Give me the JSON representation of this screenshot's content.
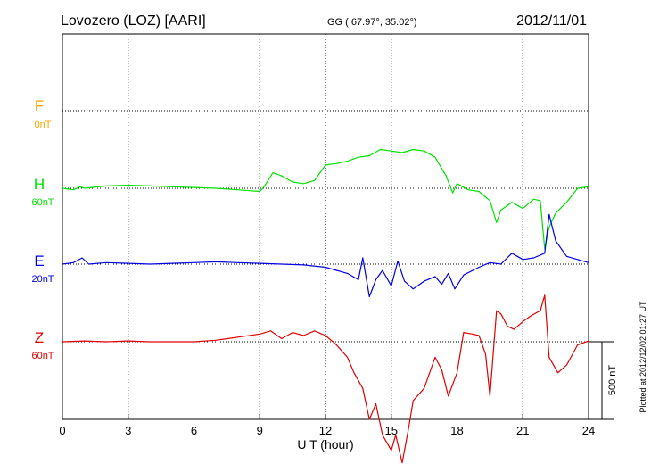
{
  "header": {
    "station": "Lovozero (LOZ)  [AARI]",
    "coords": "GG ( 67.97°,  35.02°)",
    "date": "2012/11/01"
  },
  "plotted_note": "Plotted at 2012/12/02 01:27 UT",
  "chart_data": {
    "type": "line",
    "xlabel": "U T (hour)",
    "xlim": [
      0,
      24
    ],
    "xticks": [
      "0",
      "3",
      "6",
      "9",
      "12",
      "15",
      "18",
      "21",
      "24"
    ],
    "scale_bar_label": "500 nT",
    "scale_bar_nT": 500,
    "grid": true,
    "series": [
      {
        "name": "F",
        "baseline_label": "0nT",
        "color": "#ffa500",
        "x": [],
        "values": []
      },
      {
        "name": "H",
        "baseline_label": "60nT",
        "color": "#00e000",
        "x": [
          0,
          0.5,
          0.8,
          1,
          2,
          3,
          4,
          5,
          6,
          7,
          8,
          9,
          9.2,
          9.6,
          10,
          10.5,
          11,
          11.5,
          12,
          12.5,
          13,
          13.5,
          14,
          14.5,
          15,
          15.5,
          16,
          16.5,
          17,
          17.5,
          17.8,
          18,
          18.5,
          19,
          19.5,
          19.8,
          20,
          20.5,
          21,
          21.5,
          21.8,
          22,
          22.2,
          22.5,
          23,
          23.5,
          24
        ],
        "values": [
          0,
          -10,
          10,
          0,
          15,
          20,
          15,
          10,
          5,
          0,
          -10,
          -20,
          10,
          100,
          80,
          40,
          30,
          50,
          150,
          160,
          175,
          200,
          210,
          250,
          240,
          230,
          250,
          240,
          200,
          80,
          -30,
          30,
          -10,
          -20,
          -80,
          -220,
          -140,
          -90,
          -130,
          -70,
          -80,
          -390,
          -250,
          -160,
          -90,
          0,
          10
        ]
      },
      {
        "name": "E",
        "baseline_label": "20nT",
        "color": "#0000e0",
        "x": [
          0,
          0.5,
          0.9,
          1.2,
          2,
          3,
          4,
          5,
          6,
          7,
          8,
          9,
          10,
          11,
          12,
          12.5,
          13,
          13.5,
          13.7,
          14,
          14.3,
          14.6,
          15,
          15.3,
          15.6,
          16,
          16.5,
          17,
          17.3,
          17.6,
          17.9,
          18.3,
          19,
          19.5,
          20,
          20.5,
          21,
          21.5,
          22,
          22.2,
          22.5,
          23,
          24
        ],
        "values": [
          0,
          10,
          40,
          0,
          10,
          5,
          0,
          5,
          10,
          15,
          10,
          5,
          0,
          -5,
          -20,
          -40,
          -60,
          -100,
          40,
          -210,
          -100,
          -40,
          -140,
          20,
          -110,
          -160,
          -110,
          -80,
          -130,
          -60,
          -160,
          -70,
          -20,
          10,
          0,
          70,
          30,
          40,
          70,
          320,
          150,
          50,
          10
        ]
      },
      {
        "name": "Z",
        "baseline_label": "60nT",
        "color": "#e00000",
        "x": [
          0,
          1,
          2,
          3,
          4,
          5,
          6,
          7,
          8,
          9,
          9.5,
          10,
          10.5,
          11,
          11.5,
          12,
          12.5,
          13,
          13.3,
          13.7,
          14,
          14.3,
          14.6,
          15,
          15.2,
          15.5,
          15.8,
          16,
          16.5,
          17,
          17.3,
          17.6,
          18,
          18.3,
          18.7,
          19,
          19.3,
          19.5,
          19.8,
          20,
          20.3,
          20.6,
          21,
          21.4,
          21.8,
          22,
          22.2,
          22.6,
          23,
          23.5,
          24
        ],
        "values": [
          0,
          5,
          0,
          5,
          0,
          0,
          0,
          10,
          30,
          50,
          70,
          20,
          60,
          40,
          70,
          40,
          -20,
          -100,
          -200,
          -300,
          -500,
          -400,
          -600,
          -700,
          -600,
          -780,
          -550,
          -380,
          -300,
          -100,
          -180,
          -350,
          -200,
          60,
          50,
          40,
          -80,
          -350,
          200,
          180,
          100,
          80,
          130,
          170,
          200,
          300,
          -100,
          -200,
          -150,
          -20,
          5
        ]
      }
    ]
  }
}
